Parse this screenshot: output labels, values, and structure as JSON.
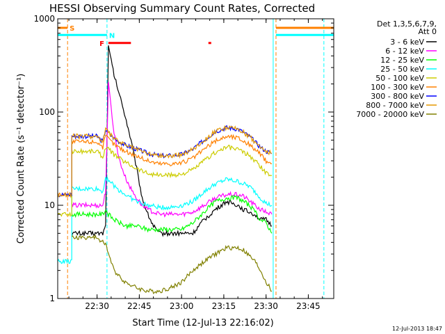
{
  "chart_data": {
    "type": "line",
    "title": "HESSI Observing Summary Count Rates, Corrected",
    "xlabel": "Start Time (12-Jul-13 22:16:02)",
    "ylabel": "Corrected Count Rate (s⁻¹ detector⁻¹)",
    "y_scale": "log",
    "ylim": [
      1,
      1000
    ],
    "xlim_minutes": [
      0,
      98
    ],
    "x_ticks": [
      {
        "label": "22:30",
        "t": 13.97
      },
      {
        "label": "22:45",
        "t": 28.97
      },
      {
        "label": "23:00",
        "t": 43.97
      },
      {
        "label": "23:15",
        "t": 58.97
      },
      {
        "label": "23:30",
        "t": 73.97
      },
      {
        "label": "23:45",
        "t": 88.97
      }
    ],
    "y_ticks": [
      {
        "label": "1",
        "v": 1
      },
      {
        "label": "10",
        "v": 10
      },
      {
        "label": "100",
        "v": 100
      },
      {
        "label": "1000",
        "v": 1000
      }
    ],
    "legend_header": [
      "Det 1,3,5,6,7,9,",
      "Att 0"
    ],
    "legend_position": "right",
    "series": [
      {
        "name": "3 - 6 keV",
        "color": "#000000",
        "t": [
          5,
          6,
          10,
          12,
          16,
          17,
          18,
          20,
          22,
          24,
          26,
          28,
          30,
          32,
          34,
          36,
          38,
          40,
          44,
          48,
          52,
          56,
          60,
          64,
          66,
          70,
          72,
          74,
          76
        ],
        "values": [
          5,
          5,
          5,
          5,
          5,
          6,
          500,
          250,
          150,
          90,
          50,
          25,
          12,
          8,
          6,
          5,
          5,
          5,
          5,
          5,
          7,
          9,
          11,
          10,
          9,
          8,
          7,
          7,
          6
        ]
      },
      {
        "name": "6 - 12 keV",
        "color": "#ff00ff",
        "t": [
          5,
          10,
          14,
          16,
          17,
          18,
          20,
          22,
          24,
          26,
          28,
          30,
          32,
          34,
          36,
          38,
          40,
          44,
          48,
          52,
          56,
          60,
          64,
          66,
          70,
          72,
          74,
          76
        ],
        "values": [
          10,
          10,
          10,
          10,
          14,
          200,
          60,
          30,
          20,
          15,
          12,
          10,
          9,
          8.5,
          8,
          8,
          8,
          8,
          8.5,
          10,
          12,
          13,
          13,
          12.5,
          10,
          9,
          8.5,
          8
        ]
      },
      {
        "name": "12 - 25 keV",
        "color": "#00ff00",
        "t": [
          5,
          10,
          14,
          16,
          17,
          18,
          20,
          24,
          28,
          32,
          36,
          40,
          44,
          48,
          52,
          56,
          60,
          64,
          66,
          68,
          70,
          72,
          74,
          76
        ],
        "values": [
          8,
          8,
          8,
          8,
          9,
          8,
          7,
          6,
          6,
          5.5,
          5.5,
          5.5,
          5.5,
          6.5,
          8.5,
          11,
          12,
          12,
          11,
          10,
          8.5,
          7,
          6.5,
          5
        ]
      },
      {
        "name": "25 - 50 keV",
        "color": "#00ffff",
        "t": [
          0,
          4.99,
          5,
          10,
          14,
          16,
          17,
          18,
          20,
          24,
          28,
          32,
          36,
          40,
          44,
          48,
          52,
          56,
          60,
          64,
          68,
          70,
          72,
          74,
          76
        ],
        "values": [
          2.5,
          2.5,
          15,
          15,
          15,
          14,
          20,
          19,
          16,
          13,
          11,
          10,
          9.5,
          9.5,
          10,
          11,
          14,
          17,
          19,
          18,
          16,
          14,
          12,
          10.5,
          10
        ]
      },
      {
        "name": "50 - 100 keV",
        "color": "#cccc00",
        "t": [
          0,
          4.99,
          5,
          10,
          14,
          16,
          17,
          18,
          20,
          24,
          28,
          32,
          36,
          40,
          44,
          48,
          52,
          56,
          60,
          64,
          68,
          70,
          72,
          74,
          76
        ],
        "values": [
          8,
          8,
          38,
          38,
          38,
          33,
          42,
          40,
          35,
          29,
          25,
          22,
          21,
          21,
          21.5,
          24,
          30,
          37,
          42,
          40,
          34,
          30,
          26,
          22,
          21
        ]
      },
      {
        "name": "100 - 300 keV",
        "color": "#ff8000",
        "t": [
          0,
          4.99,
          5,
          10,
          14,
          16,
          17,
          18,
          20,
          24,
          28,
          32,
          36,
          40,
          44,
          48,
          52,
          56,
          60,
          64,
          68,
          70,
          72,
          74,
          76
        ],
        "values": [
          13,
          13,
          48,
          48,
          48,
          42,
          55,
          52,
          45,
          38,
          34,
          30,
          28,
          28,
          28.5,
          32,
          40,
          49,
          55,
          53,
          45,
          40,
          35,
          30,
          28
        ]
      },
      {
        "name": "300 - 800 keV",
        "color": "#0000ff",
        "t": [
          0,
          4.99,
          5,
          10,
          14,
          16,
          17,
          18,
          20,
          24,
          28,
          32,
          36,
          40,
          44,
          48,
          52,
          56,
          60,
          64,
          68,
          70,
          72,
          74,
          76
        ],
        "values": [
          13,
          13,
          55,
          55,
          55,
          48,
          65,
          60,
          52,
          44,
          40,
          36,
          34,
          34,
          35,
          40,
          50,
          62,
          68,
          66,
          55,
          48,
          42,
          38,
          36
        ]
      },
      {
        "name": "800 - 7000 keV",
        "color": "#e69900",
        "t": [
          0,
          4.99,
          5,
          10,
          14,
          16,
          17,
          18,
          20,
          24,
          28,
          32,
          36,
          40,
          44,
          48,
          52,
          56,
          60,
          64,
          68,
          70,
          72,
          74,
          76
        ],
        "values": [
          13,
          13,
          55,
          55,
          55,
          48,
          65,
          60,
          52,
          44,
          40,
          36,
          34,
          34,
          35,
          40,
          50,
          62,
          68,
          66,
          55,
          48,
          42,
          38,
          36
        ]
      },
      {
        "name": "7000 - 20000 keV",
        "color": "#808000",
        "t": [
          5,
          10,
          14,
          16,
          17,
          18,
          20,
          24,
          28,
          32,
          36,
          40,
          44,
          48,
          52,
          56,
          60,
          64,
          66,
          70,
          72,
          74,
          76
        ],
        "values": [
          4.5,
          4.5,
          4.5,
          4,
          4,
          3,
          2,
          1.5,
          1.3,
          1.2,
          1.2,
          1.3,
          1.5,
          2,
          2.5,
          3,
          3.5,
          3.5,
          3.3,
          2.5,
          2,
          1.5,
          1.2
        ]
      }
    ],
    "bands": [
      {
        "label": "S",
        "color": "#ff8000",
        "value": 800,
        "intervals": [
          [
            0,
            3.5
          ],
          [
            77.5,
            98
          ]
        ]
      },
      {
        "label": "N",
        "color": "#00ffff",
        "value": 670,
        "intervals": [
          [
            0,
            17.5
          ],
          [
            77.5,
            98
          ]
        ]
      },
      {
        "label": "F",
        "color": "#ff0000",
        "value": 550,
        "intervals": [
          [
            18,
            26
          ],
          [
            53.5,
            54.5
          ]
        ]
      }
    ],
    "vlines": [
      {
        "t": 3.5,
        "color": "#ff8000",
        "dashed": true
      },
      {
        "t": 17.5,
        "color": "#00ffff",
        "dashed": true
      },
      {
        "t": 76.5,
        "color": "#00ffff",
        "dashed": false
      },
      {
        "t": 77.5,
        "color": "#ff8000",
        "dashed": true
      },
      {
        "t": 94.5,
        "color": "#00ffff",
        "dashed": true
      }
    ],
    "grid": false
  },
  "timestamp": "12-Jul-2013 18:47"
}
